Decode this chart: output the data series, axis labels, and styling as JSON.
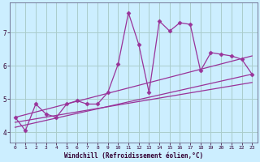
{
  "background_color": "#cceeff",
  "grid_color": "#aacccc",
  "line_color": "#993399",
  "xlabel": "Windchill (Refroidissement éolien,°C)",
  "xlim": [
    -0.5,
    23.5
  ],
  "ylim": [
    3.7,
    7.9
  ],
  "yticks": [
    4,
    5,
    6,
    7
  ],
  "xticks": [
    0,
    1,
    2,
    3,
    4,
    5,
    6,
    7,
    8,
    9,
    10,
    11,
    12,
    13,
    14,
    15,
    16,
    17,
    18,
    19,
    20,
    21,
    22,
    23
  ],
  "main_x": [
    0,
    1,
    2,
    3,
    4,
    5,
    6,
    7,
    8,
    9,
    10,
    11,
    12,
    13,
    14,
    15,
    16,
    17,
    18,
    19,
    20,
    21,
    22,
    23
  ],
  "main_y": [
    4.45,
    4.05,
    4.85,
    4.55,
    4.45,
    4.85,
    4.95,
    4.85,
    4.85,
    5.2,
    6.05,
    7.6,
    6.65,
    5.2,
    7.35,
    7.05,
    7.3,
    7.25,
    5.85,
    6.4,
    6.35,
    6.3,
    6.2,
    5.75
  ],
  "trend1_x": [
    0,
    23
  ],
  "trend1_y": [
    4.45,
    6.3
  ],
  "trend2_x": [
    0,
    23
  ],
  "trend2_y": [
    4.15,
    5.75
  ],
  "trend3_x": [
    0,
    23
  ],
  "trend3_y": [
    4.3,
    5.5
  ]
}
